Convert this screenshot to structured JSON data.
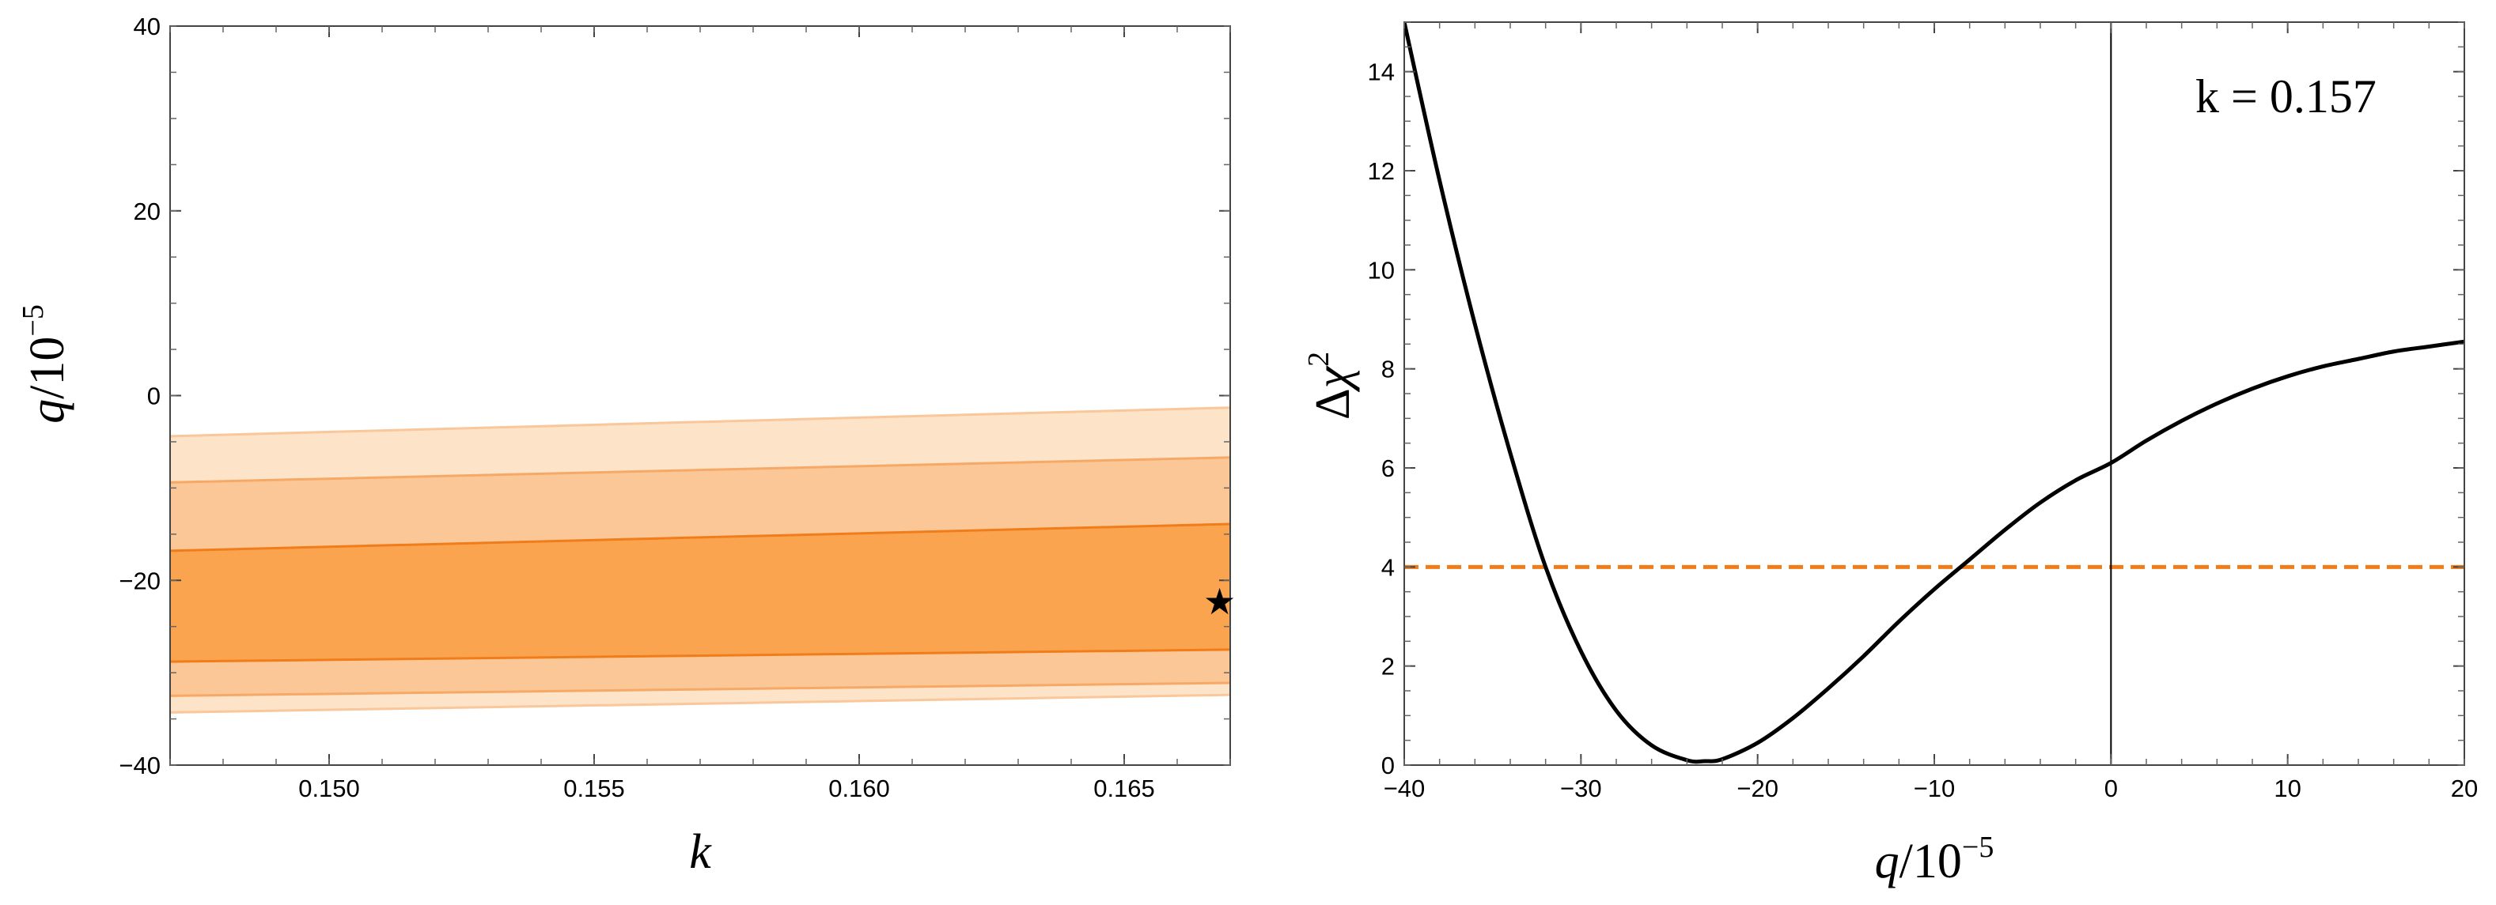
{
  "chart_data": [
    {
      "type": "area",
      "xlim": [
        0.147,
        0.167
      ],
      "ylim": [
        -40,
        40
      ],
      "x_ticks": [
        0.15,
        0.155,
        0.16,
        0.165
      ],
      "x_tick_labels": [
        "0.150",
        "0.155",
        "0.160",
        "0.165"
      ],
      "y_ticks": [
        -40,
        -20,
        0,
        20,
        40
      ],
      "y_tick_labels": [
        "−40",
        "−20",
        "0",
        "20",
        "40"
      ],
      "xlabel": {
        "var": "k",
        "text": ""
      },
      "ylabel": {
        "var": "q",
        "text": "/10",
        "exp": "−5"
      },
      "bands": [
        {
          "level": "outer",
          "color": "#fde3c8",
          "x": [
            0.147,
            0.167
          ],
          "lower": [
            -34.3,
            -32.4
          ],
          "upper": [
            -4.4,
            -1.3
          ]
        },
        {
          "level": "middle",
          "color": "#fbc796",
          "x": [
            0.147,
            0.167
          ],
          "lower": [
            -32.5,
            -31.1
          ],
          "upper": [
            -9.4,
            -6.7
          ]
        },
        {
          "level": "inner",
          "color": "#fba450",
          "x": [
            0.147,
            0.167
          ],
          "lower": [
            -28.8,
            -27.5
          ],
          "upper": [
            -16.8,
            -13.9
          ]
        }
      ],
      "best_fit": {
        "k": 0.1668,
        "q": -22.3,
        "marker": "★"
      },
      "grid": false
    },
    {
      "type": "line",
      "xlim": [
        -40,
        20
      ],
      "ylim": [
        0,
        15
      ],
      "x_ticks": [
        -40,
        -30,
        -20,
        -10,
        0,
        10,
        20
      ],
      "x_tick_labels": [
        "−40",
        "−30",
        "−20",
        "−10",
        "0",
        "10",
        "20"
      ],
      "y_ticks": [
        0,
        2,
        4,
        6,
        8,
        10,
        12,
        14
      ],
      "y_tick_labels": [
        "0",
        "2",
        "4",
        "6",
        "8",
        "10",
        "12",
        "14"
      ],
      "xlabel": {
        "var": "q",
        "text": "/10",
        "exp": "−5"
      },
      "ylabel": {
        "prefix": "Δ",
        "var": "χ",
        "exp": "2"
      },
      "annotation": {
        "var": "k",
        "text": " = 0.157"
      },
      "series": [
        {
          "color": "#000000",
          "x": [
            -40,
            -38,
            -36,
            -34,
            -32,
            -30,
            -28,
            -26,
            -24,
            -23,
            -22,
            -20,
            -18,
            -16,
            -14,
            -12,
            -10,
            -8,
            -6,
            -4,
            -2,
            0,
            2,
            4,
            6,
            8,
            10,
            12,
            14,
            16,
            18,
            20
          ],
          "values": [
            15.0,
            11.8,
            8.9,
            6.3,
            4.0,
            2.3,
            1.1,
            0.4,
            0.1,
            0.08,
            0.12,
            0.45,
            0.95,
            1.55,
            2.2,
            2.9,
            3.55,
            4.15,
            4.75,
            5.3,
            5.75,
            6.1,
            6.55,
            6.95,
            7.3,
            7.6,
            7.85,
            8.05,
            8.2,
            8.35,
            8.45,
            8.55
          ]
        }
      ],
      "reference_lines": [
        {
          "orientation": "horizontal",
          "value": 4,
          "color": "#f07d1a",
          "style": "dashed"
        },
        {
          "orientation": "vertical",
          "value": 0,
          "color": "#000000",
          "style": "solid"
        }
      ],
      "grid": false
    }
  ]
}
